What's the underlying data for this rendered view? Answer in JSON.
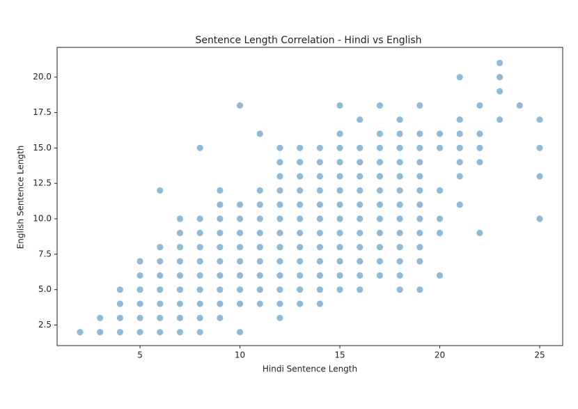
{
  "chart_data": {
    "type": "scatter",
    "title": "Sentence Length Correlation - Hindi vs English",
    "x_label": "Hindi Sentence Length",
    "y_label": "English Sentence Length",
    "color": "#1f77b4",
    "alpha": 0.5,
    "grid": false,
    "xlim": [
      0.85,
      26.15
    ],
    "ylim": [
      1.05,
      22.1
    ],
    "xticks": [
      5,
      10,
      15,
      20,
      25
    ],
    "yticks": [
      2.5,
      {
        "value": 5,
        "label": "5.0"
      },
      7.5,
      {
        "value": 10,
        "label": "10.0"
      },
      12.5,
      {
        "value": 15,
        "label": "15.0"
      },
      17.5,
      {
        "value": 20,
        "label": "20.0"
      }
    ],
    "x": [
      2,
      3,
      3,
      4,
      4,
      4,
      4,
      5,
      5,
      5,
      5,
      5,
      5,
      6,
      6,
      6,
      6,
      6,
      6,
      6,
      6,
      7,
      7,
      7,
      7,
      7,
      7,
      7,
      7,
      7,
      8,
      8,
      8,
      8,
      8,
      8,
      8,
      8,
      8,
      8,
      9,
      9,
      9,
      9,
      9,
      9,
      9,
      9,
      9,
      9,
      10,
      10,
      10,
      10,
      10,
      10,
      10,
      10,
      10,
      10,
      11,
      11,
      11,
      11,
      11,
      11,
      11,
      11,
      11,
      11,
      12,
      12,
      12,
      12,
      12,
      12,
      12,
      12,
      12,
      12,
      12,
      12,
      12,
      13,
      13,
      13,
      13,
      13,
      13,
      13,
      13,
      13,
      13,
      13,
      13,
      14,
      14,
      14,
      14,
      14,
      14,
      14,
      14,
      14,
      14,
      14,
      14,
      15,
      15,
      15,
      15,
      15,
      15,
      15,
      15,
      15,
      15,
      15,
      15,
      15,
      16,
      16,
      16,
      16,
      16,
      16,
      16,
      16,
      16,
      16,
      16,
      16,
      17,
      17,
      17,
      17,
      17,
      17,
      17,
      17,
      17,
      17,
      17,
      17,
      18,
      18,
      18,
      18,
      18,
      18,
      18,
      18,
      18,
      18,
      18,
      18,
      18,
      19,
      19,
      19,
      19,
      19,
      19,
      19,
      19,
      19,
      19,
      19,
      19,
      20,
      20,
      20,
      20,
      20,
      20,
      21,
      21,
      21,
      21,
      21,
      21,
      21,
      22,
      22,
      22,
      22,
      22,
      23,
      23,
      23,
      23,
      24,
      25,
      25,
      25,
      25
    ],
    "y": [
      2,
      2,
      3,
      2,
      3,
      4,
      5,
      2,
      3,
      4,
      5,
      6,
      7,
      2,
      3,
      4,
      5,
      6,
      7,
      8,
      12,
      2,
      3,
      4,
      5,
      6,
      7,
      8,
      9,
      10,
      2,
      3,
      4,
      5,
      6,
      7,
      8,
      9,
      10,
      15,
      3,
      4,
      5,
      6,
      7,
      8,
      9,
      10,
      11,
      12,
      2,
      4,
      5,
      6,
      7,
      8,
      9,
      10,
      11,
      18,
      4,
      5,
      6,
      7,
      8,
      9,
      10,
      11,
      12,
      16,
      3,
      4,
      5,
      6,
      7,
      8,
      9,
      10,
      11,
      12,
      13,
      14,
      15,
      4,
      5,
      6,
      7,
      8,
      9,
      10,
      11,
      12,
      13,
      14,
      15,
      4,
      5,
      6,
      7,
      8,
      9,
      10,
      11,
      12,
      13,
      14,
      15,
      5,
      6,
      7,
      8,
      9,
      10,
      11,
      12,
      13,
      14,
      15,
      16,
      18,
      5,
      6,
      7,
      8,
      9,
      10,
      11,
      12,
      13,
      14,
      15,
      17,
      6,
      7,
      8,
      9,
      10,
      11,
      12,
      13,
      14,
      15,
      16,
      18,
      5,
      6,
      7,
      8,
      9,
      10,
      11,
      12,
      13,
      14,
      15,
      16,
      17,
      5,
      7,
      8,
      9,
      10,
      11,
      12,
      13,
      14,
      15,
      16,
      18,
      6,
      9,
      10,
      12,
      15,
      16,
      11,
      13,
      14,
      15,
      16,
      17,
      20,
      9,
      14,
      15,
      16,
      18,
      17,
      19,
      20,
      21,
      18,
      10,
      13,
      15,
      17
    ]
  }
}
